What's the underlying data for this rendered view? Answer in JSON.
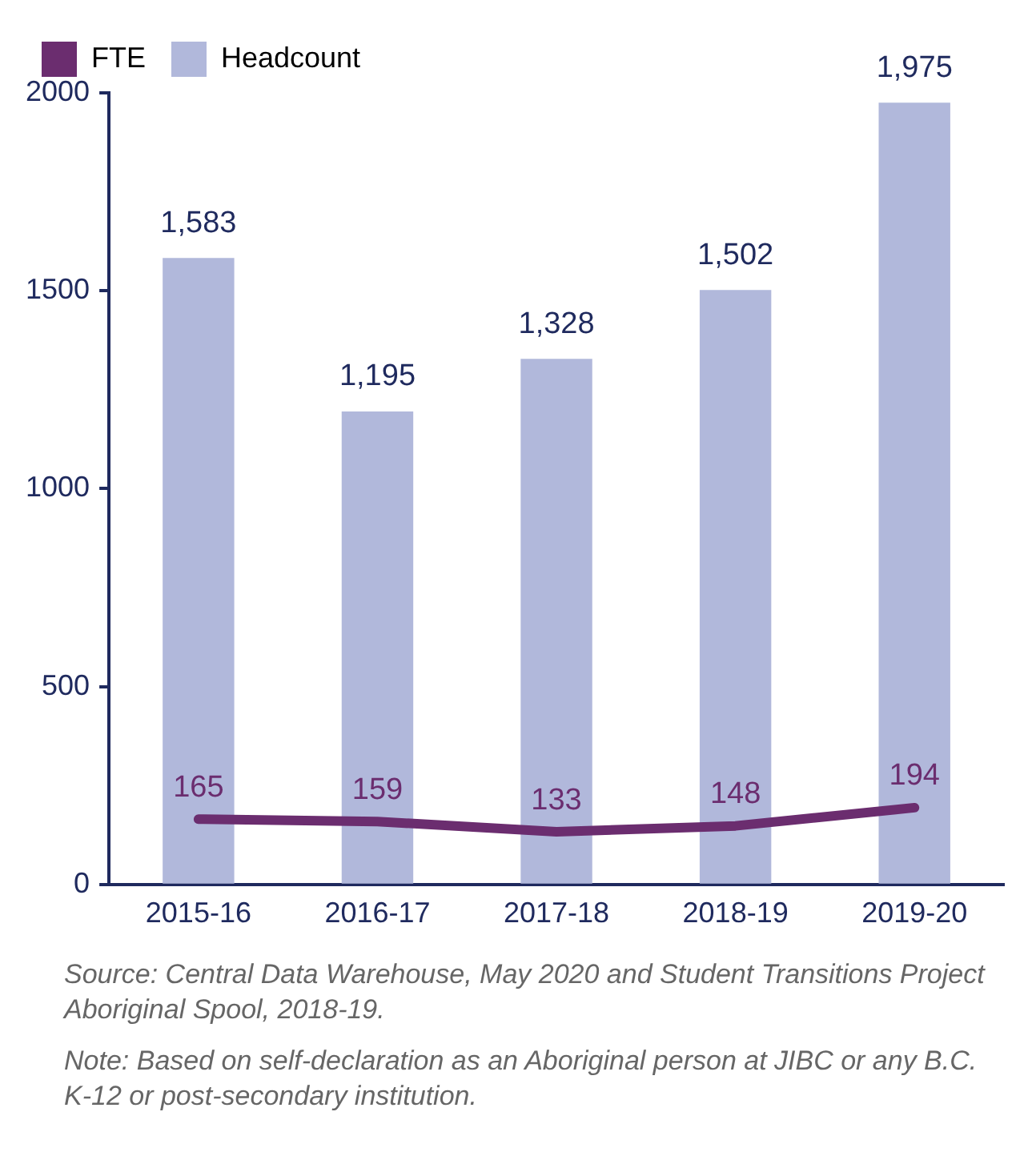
{
  "chart_data": {
    "type": "bar",
    "categories": [
      "2015-16",
      "2016-17",
      "2017-18",
      "2018-19",
      "2019-20"
    ],
    "series": [
      {
        "name": "FTE",
        "type": "line",
        "color": "#6b2d6f",
        "values": [
          165,
          159,
          133,
          148,
          194
        ],
        "value_labels": [
          "165",
          "159",
          "133",
          "148",
          "194"
        ]
      },
      {
        "name": "Headcount",
        "color": "#b1b8db",
        "values": [
          1583,
          1195,
          1328,
          1502,
          1975
        ],
        "value_labels": [
          "1,583",
          "1,195",
          "1,328",
          "1,502",
          "1,975"
        ]
      }
    ],
    "ylim": [
      0,
      2000
    ],
    "yticks": [
      0,
      500,
      1000,
      1500,
      2000
    ],
    "grid": false,
    "legend": "top left",
    "marker": "none",
    "annotations": [
      "Source: Central Data Warehouse, May 2020 and Student Transitions Project Aboriginal Spool, 2018-19.",
      "Note: Based on self-declaration as an Aboriginal person at JIBC or any B.C. K-12 or post-secondary institution."
    ]
  }
}
